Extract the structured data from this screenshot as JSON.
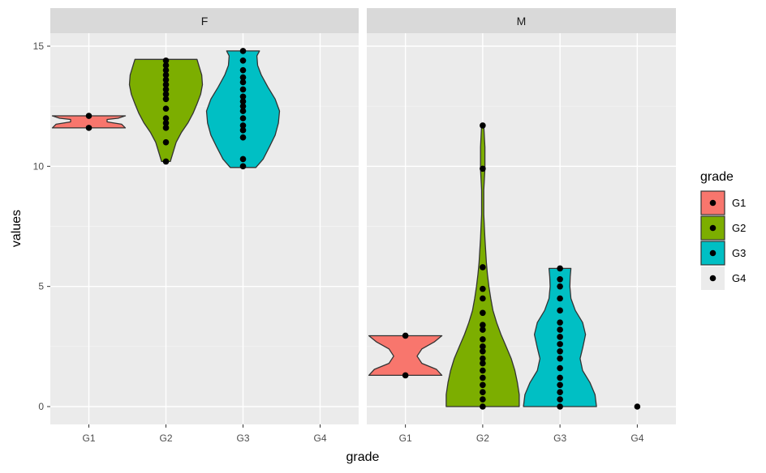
{
  "chart_data": {
    "type": "violin",
    "xlabel": "grade",
    "ylabel": "values",
    "facet_labels": [
      "F",
      "M"
    ],
    "categories": [
      "G1",
      "G2",
      "G3",
      "G4"
    ],
    "ylim": [
      -0.7,
      15.5
    ],
    "yticks": [
      0,
      5,
      10,
      15
    ],
    "grid": true,
    "legend": {
      "title": "grade",
      "position": "right",
      "entries": [
        {
          "label": "G1",
          "color": "#F8766D"
        },
        {
          "label": "G2",
          "color": "#7CAE00"
        },
        {
          "label": "G3",
          "color": "#00BFC4"
        },
        {
          "label": "G4",
          "color": "#EBEBEB"
        }
      ]
    },
    "series": [
      {
        "facet": "F",
        "category": "G1",
        "color": "#F8766D",
        "points": [
          12.1,
          11.6
        ],
        "violin": [
          [
            11.6,
            1.0
          ],
          [
            11.75,
            0.9
          ],
          [
            11.85,
            0.5
          ],
          [
            11.95,
            0.5
          ],
          [
            12.0,
            0.8
          ],
          [
            12.1,
            1.0
          ]
        ]
      },
      {
        "facet": "F",
        "category": "G2",
        "color": "#7CAE00",
        "points": [
          10.2,
          11.0,
          11.6,
          11.8,
          12.0,
          12.4,
          12.8,
          13.0,
          13.2,
          13.4,
          13.6,
          13.8,
          14.0,
          14.2,
          14.4
        ],
        "violin": [
          [
            10.2,
            0.12
          ],
          [
            10.6,
            0.2
          ],
          [
            11.0,
            0.28
          ],
          [
            11.4,
            0.42
          ],
          [
            11.8,
            0.6
          ],
          [
            12.2,
            0.74
          ],
          [
            12.6,
            0.85
          ],
          [
            13.0,
            0.95
          ],
          [
            13.4,
            1.0
          ],
          [
            13.8,
            0.98
          ],
          [
            14.2,
            0.9
          ],
          [
            14.45,
            0.85
          ]
        ]
      },
      {
        "facet": "F",
        "category": "G3",
        "color": "#00BFC4",
        "points": [
          10.0,
          10.3,
          11.2,
          11.5,
          11.7,
          12.0,
          12.3,
          12.5,
          12.7,
          12.9,
          13.2,
          13.5,
          13.7,
          14.0,
          14.4,
          14.8
        ],
        "violin": [
          [
            9.95,
            0.35
          ],
          [
            10.3,
            0.55
          ],
          [
            10.8,
            0.72
          ],
          [
            11.3,
            0.88
          ],
          [
            11.8,
            0.97
          ],
          [
            12.3,
            1.0
          ],
          [
            12.8,
            0.88
          ],
          [
            13.3,
            0.68
          ],
          [
            13.8,
            0.5
          ],
          [
            14.2,
            0.4
          ],
          [
            14.6,
            0.38
          ],
          [
            14.8,
            0.45
          ]
        ]
      },
      {
        "facet": "M",
        "category": "G1",
        "color": "#F8766D",
        "points": [
          2.95,
          1.3
        ],
        "violin": [
          [
            1.3,
            1.0
          ],
          [
            1.55,
            0.85
          ],
          [
            1.8,
            0.45
          ],
          [
            2.1,
            0.32
          ],
          [
            2.4,
            0.45
          ],
          [
            2.7,
            0.8
          ],
          [
            2.95,
            1.0
          ]
        ]
      },
      {
        "facet": "M",
        "category": "G2",
        "color": "#7CAE00",
        "points": [
          0,
          0.3,
          0.6,
          0.9,
          1.2,
          1.5,
          1.8,
          2.0,
          2.3,
          2.5,
          2.8,
          3.2,
          3.4,
          3.9,
          4.5,
          4.9,
          5.8,
          9.9,
          11.7
        ],
        "violin": [
          [
            0,
            1.0
          ],
          [
            0.5,
            1.0
          ],
          [
            1.0,
            0.95
          ],
          [
            1.5,
            0.88
          ],
          [
            2.0,
            0.78
          ],
          [
            2.5,
            0.64
          ],
          [
            3.0,
            0.5
          ],
          [
            3.5,
            0.38
          ],
          [
            4.0,
            0.28
          ],
          [
            4.5,
            0.22
          ],
          [
            5.0,
            0.17
          ],
          [
            5.5,
            0.13
          ],
          [
            6.0,
            0.1
          ],
          [
            7.0,
            0.06
          ],
          [
            8.0,
            0.03
          ],
          [
            9.0,
            0.03
          ],
          [
            9.9,
            0.06
          ],
          [
            10.8,
            0.06
          ],
          [
            11.7,
            0.03
          ]
        ]
      },
      {
        "facet": "M",
        "category": "G3",
        "color": "#00BFC4",
        "points": [
          0,
          0.3,
          0.6,
          0.9,
          1.2,
          1.6,
          2.0,
          2.3,
          2.6,
          2.9,
          3.2,
          3.5,
          4.0,
          4.5,
          5.0,
          5.3,
          5.75
        ],
        "violin": [
          [
            0,
            1.0
          ],
          [
            0.5,
            0.96
          ],
          [
            1.0,
            0.82
          ],
          [
            1.5,
            0.62
          ],
          [
            2.0,
            0.55
          ],
          [
            2.5,
            0.63
          ],
          [
            3.0,
            0.7
          ],
          [
            3.5,
            0.62
          ],
          [
            4.0,
            0.42
          ],
          [
            4.5,
            0.3
          ],
          [
            5.0,
            0.27
          ],
          [
            5.4,
            0.28
          ],
          [
            5.75,
            0.3
          ]
        ]
      },
      {
        "facet": "M",
        "category": "G4",
        "color": "#EBEBEB",
        "points": [
          0
        ],
        "violin": []
      }
    ]
  }
}
